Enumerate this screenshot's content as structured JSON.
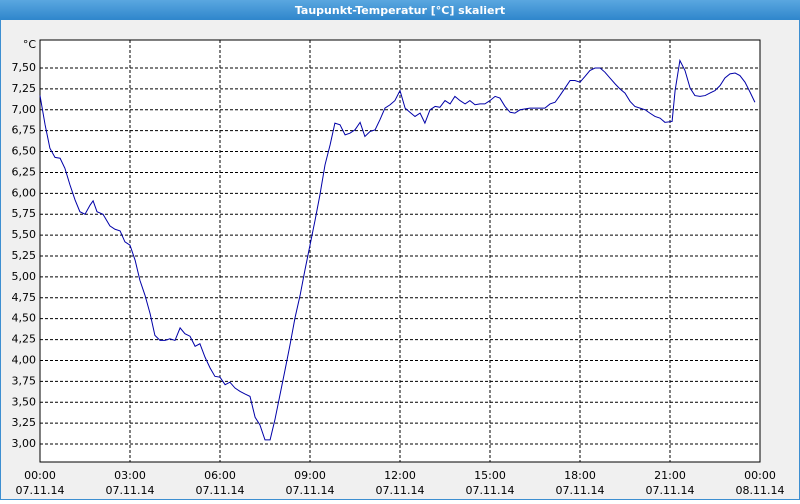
{
  "chart_data": {
    "type": "line",
    "title": "Taupunkt-Temperatur [°C] skaliert",
    "y_unit": "°C",
    "color": "#0000a8",
    "grid": true,
    "xlim": [
      0,
      24
    ],
    "ylim": [
      2.785,
      7.835
    ],
    "xticks": [
      {
        "value": 0,
        "label": "00:00"
      },
      {
        "value": 3,
        "label": "03:00"
      },
      {
        "value": 6,
        "label": "06:00"
      },
      {
        "value": 9,
        "label": "09:00"
      },
      {
        "value": 12,
        "label": "12:00"
      },
      {
        "value": 15,
        "label": "15:00"
      },
      {
        "value": 18,
        "label": "18:00"
      },
      {
        "value": 21,
        "label": "21:00"
      },
      {
        "value": 24,
        "label": "00:00"
      }
    ],
    "xtick_dates": [
      "07.11.14",
      "07.11.14",
      "07.11.14",
      "07.11.14",
      "07.11.14",
      "07.11.14",
      "07.11.14",
      "07.11.14",
      "08.11.14"
    ],
    "yticks": [
      {
        "value": 3,
        "label": "3,00"
      },
      {
        "value": 3.25,
        "label": "3,25"
      },
      {
        "value": 3.5,
        "label": "3,50"
      },
      {
        "value": 3.75,
        "label": "3,75"
      },
      {
        "value": 4,
        "label": "4,00"
      },
      {
        "value": 4.25,
        "label": "4,25"
      },
      {
        "value": 4.5,
        "label": "4,50"
      },
      {
        "value": 4.75,
        "label": "4,75"
      },
      {
        "value": 5,
        "label": "5,00"
      },
      {
        "value": 5.25,
        "label": "5,25"
      },
      {
        "value": 5.5,
        "label": "5,50"
      },
      {
        "value": 5.75,
        "label": "5,75"
      },
      {
        "value": 6,
        "label": "6,00"
      },
      {
        "value": 6.25,
        "label": "6,25"
      },
      {
        "value": 6.5,
        "label": "6,50"
      },
      {
        "value": 6.75,
        "label": "6,75"
      },
      {
        "value": 7,
        "label": "7,00"
      },
      {
        "value": 7.25,
        "label": "7,25"
      },
      {
        "value": 7.5,
        "label": "7,50"
      }
    ],
    "x": [
      0,
      0.17,
      0.33,
      0.5,
      0.67,
      0.83,
      1,
      1.17,
      1.33,
      1.5,
      1.67,
      1.77,
      1.9,
      2.1,
      2.33,
      2.5,
      2.67,
      2.83,
      3,
      3.17,
      3.33,
      3.5,
      3.67,
      3.83,
      4,
      4.17,
      4.33,
      4.5,
      4.67,
      4.83,
      5,
      5.17,
      5.33,
      5.5,
      5.67,
      5.83,
      6,
      6.17,
      6.33,
      6.5,
      6.67,
      6.83,
      7,
      7.17,
      7.33,
      7.5,
      7.67,
      7.83,
      8,
      8.17,
      8.33,
      8.5,
      8.67,
      8.83,
      9,
      9.17,
      9.33,
      9.5,
      9.67,
      9.83,
      10,
      10.17,
      10.33,
      10.5,
      10.67,
      10.83,
      11,
      11.17,
      11.33,
      11.5,
      11.67,
      11.83,
      12,
      12.17,
      12.33,
      12.5,
      12.67,
      12.83,
      13,
      13.17,
      13.33,
      13.5,
      13.67,
      13.83,
      14,
      14.17,
      14.33,
      14.5,
      14.67,
      14.83,
      15,
      15.17,
      15.33,
      15.5,
      15.67,
      15.83,
      16,
      16.33,
      16.67,
      16.83,
      17,
      17.17,
      17.33,
      17.5,
      17.67,
      17.83,
      18,
      18.17,
      18.33,
      18.5,
      18.67,
      18.83,
      19,
      19.17,
      19.33,
      19.5,
      19.67,
      19.83,
      20,
      20.17,
      20.33,
      20.5,
      20.67,
      20.83,
      21.07,
      21.17,
      21.33,
      21.5,
      21.67,
      21.83,
      22,
      22.17,
      22.33,
      22.5,
      22.67,
      22.83,
      23,
      23.17,
      23.33,
      23.5,
      23.67,
      23.83
    ],
    "values": [
      7.17,
      6.82,
      6.54,
      6.43,
      6.42,
      6.3,
      6.1,
      5.92,
      5.78,
      5.75,
      5.86,
      5.91,
      5.78,
      5.75,
      5.61,
      5.57,
      5.55,
      5.42,
      5.38,
      5.2,
      4.96,
      4.78,
      4.56,
      4.3,
      4.24,
      4.24,
      4.26,
      4.24,
      4.39,
      4.32,
      4.29,
      4.17,
      4.2,
      4.04,
      3.91,
      3.81,
      3.8,
      3.71,
      3.74,
      3.67,
      3.63,
      3.6,
      3.57,
      3.32,
      3.23,
      3.05,
      3.05,
      3.29,
      3.59,
      3.89,
      4.18,
      4.51,
      4.78,
      5.08,
      5.38,
      5.68,
      5.98,
      6.34,
      6.58,
      6.84,
      6.82,
      6.7,
      6.72,
      6.76,
      6.85,
      6.68,
      6.74,
      6.76,
      6.88,
      7.02,
      7.06,
      7.11,
      7.23,
      7.02,
      6.97,
      6.92,
      6.96,
      6.84,
      7,
      7.04,
      7.03,
      7.11,
      7.07,
      7.16,
      7.11,
      7.07,
      7.11,
      7.06,
      7.07,
      7.07,
      7.11,
      7.16,
      7.14,
      7.04,
      6.97,
      6.96,
      7,
      7.02,
      7.02,
      7.02,
      7.07,
      7.09,
      7.17,
      7.26,
      7.35,
      7.35,
      7.33,
      7.4,
      7.47,
      7.5,
      7.5,
      7.45,
      7.38,
      7.31,
      7.25,
      7.2,
      7.1,
      7.04,
      7.02,
      7,
      6.96,
      6.92,
      6.9,
      6.85,
      6.86,
      7.23,
      7.59,
      7.47,
      7.26,
      7.17,
      7.16,
      7.17,
      7.2,
      7.23,
      7.29,
      7.38,
      7.43,
      7.44,
      7.41,
      7.33,
      7.21,
      7.09
    ]
  }
}
